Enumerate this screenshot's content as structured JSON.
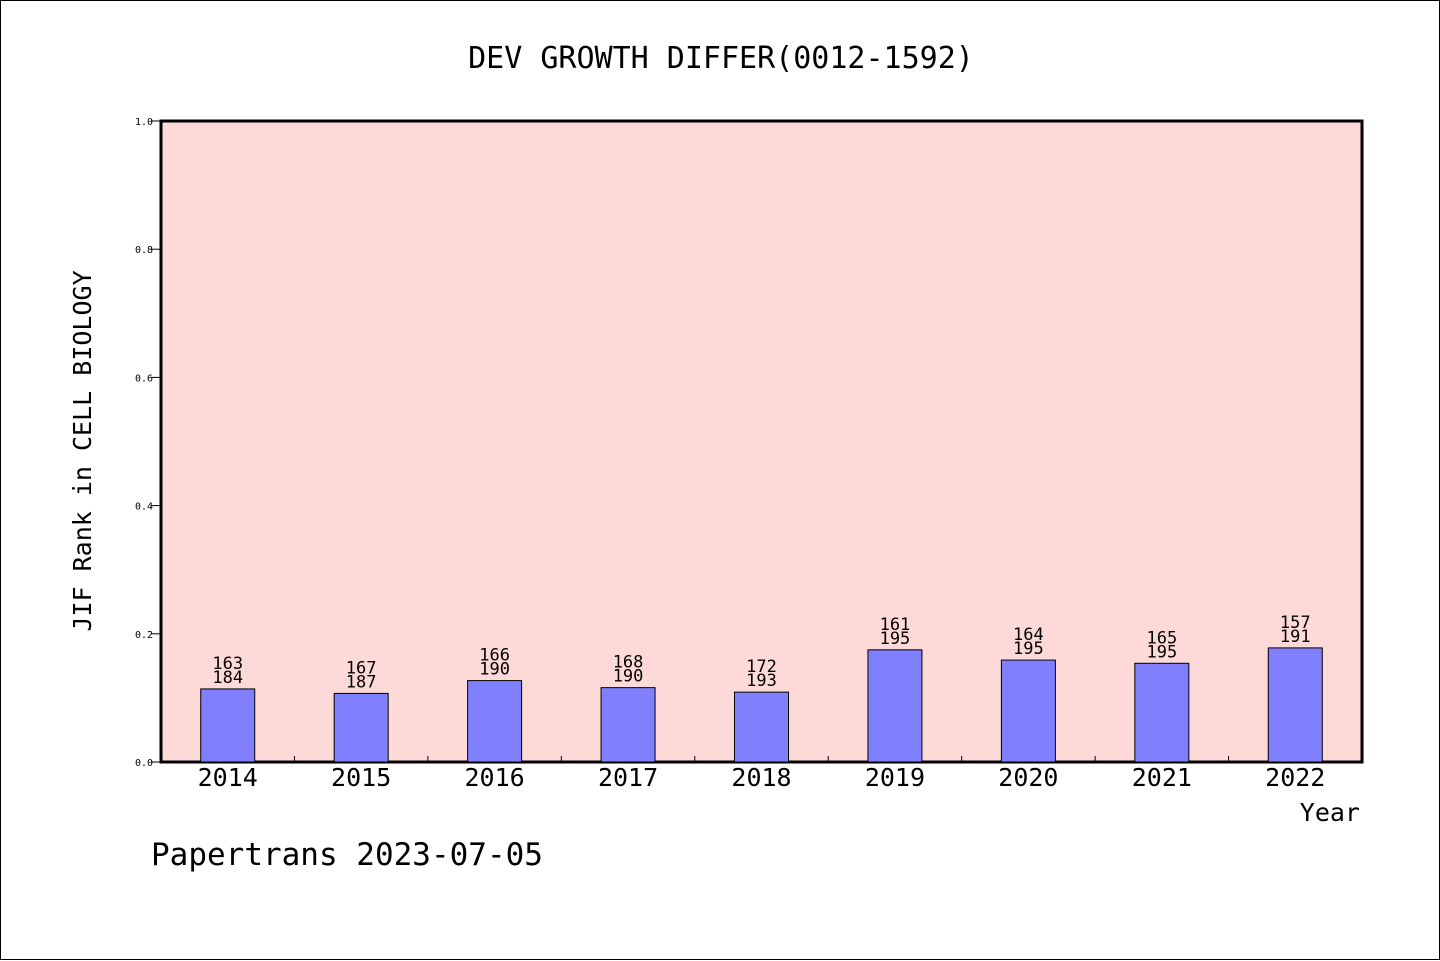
{
  "chart_data": {
    "type": "bar",
    "title": "DEV GROWTH DIFFER(0012-1592)",
    "xlabel": "Year",
    "ylabel": "JIF Rank in CELL BIOLOGY",
    "ylim": [
      0,
      1.0
    ],
    "yticks": [
      "0.0",
      "0.2",
      "0.4",
      "0.6",
      "0.8",
      "1.0"
    ],
    "grid": false,
    "categories": [
      "2014",
      "2015",
      "2016",
      "2017",
      "2018",
      "2019",
      "2020",
      "2021",
      "2022"
    ],
    "values": [
      0.114,
      0.107,
      0.127,
      0.116,
      0.109,
      0.175,
      0.159,
      0.154,
      0.178
    ],
    "rank": [
      "163",
      "167",
      "166",
      "168",
      "172",
      "161",
      "164",
      "165",
      "157"
    ],
    "total": [
      "184",
      "187",
      "190",
      "190",
      "193",
      "195",
      "195",
      "195",
      "191"
    ],
    "colors": {
      "bar": "#8080ff",
      "plot_bg": "#fddad7",
      "axis": "#000000"
    }
  },
  "footer": {
    "credit": "Papertrans 2023-07-05"
  }
}
